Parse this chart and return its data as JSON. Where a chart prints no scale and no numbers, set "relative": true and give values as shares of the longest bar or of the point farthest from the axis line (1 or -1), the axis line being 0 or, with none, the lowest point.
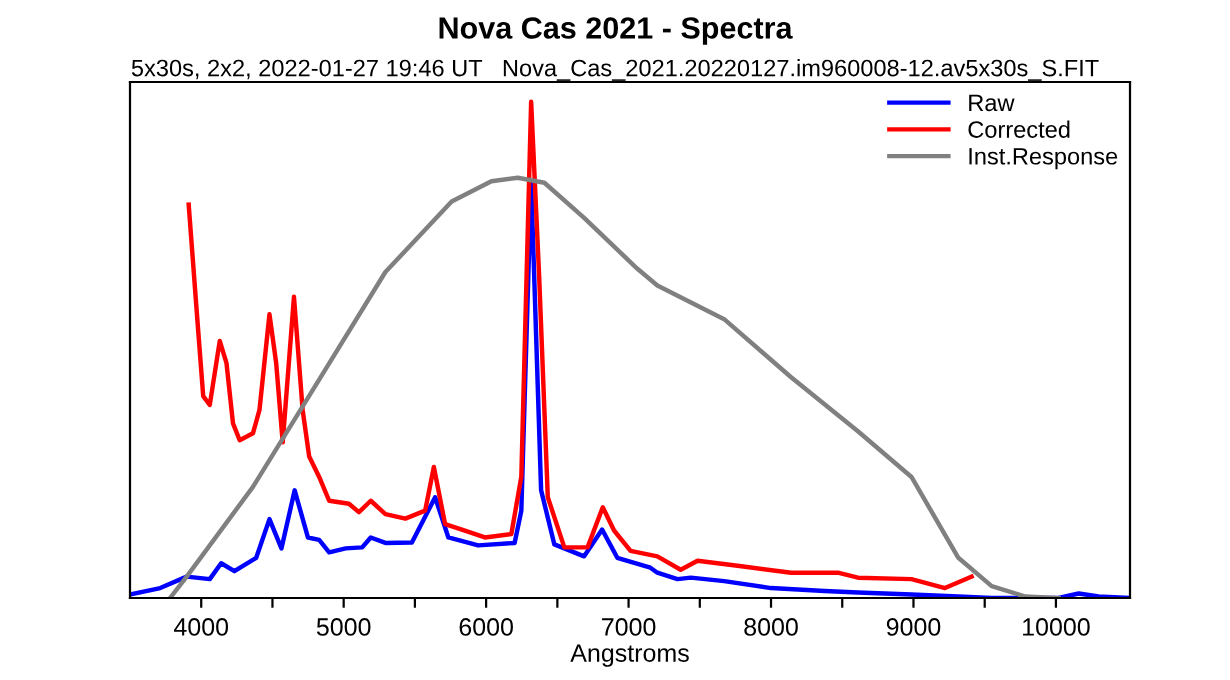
{
  "chart_data": {
    "type": "line",
    "title": "Nova Cas 2021 - Spectra",
    "subtitle": "5x30s, 2x2, 2022-01-27 19:46 UT   Nova_Cas_2021.20220127.im960008-12.av5x30s_S.FIT",
    "xlabel": "Angstroms",
    "relative": true,
    "xlim": [
      3500,
      10520
    ],
    "xticks": [
      4000,
      {
        "value": 4500,
        "label": null
      },
      5000,
      {
        "value": 5500,
        "label": null
      },
      6000,
      {
        "value": 6500,
        "label": null
      },
      7000,
      {
        "value": 7500,
        "label": null
      },
      8000,
      {
        "value": 8500,
        "label": null
      },
      9000,
      {
        "value": 9500,
        "label": null
      },
      10000
    ],
    "legend": "top right",
    "grid": false,
    "line_style": "solid",
    "marker": "none",
    "series": [
      {
        "name": "Raw",
        "color": "#0000ff",
        "x": [
          3500,
          3712,
          3898,
          4060,
          4140,
          4233,
          4386,
          4479,
          4563,
          4656,
          4749,
          4828,
          4898,
          5014,
          5130,
          5190,
          5293,
          5479,
          5642,
          5735,
          5944,
          6200,
          6247,
          6316,
          6386,
          6479,
          6688,
          6814,
          6921,
          7153,
          7202,
          7343,
          7437,
          7671,
          8000,
          8376,
          8610,
          8986,
          9315,
          9549,
          10019,
          10160,
          10300,
          10512
        ],
        "values": [
          0.007,
          0.02,
          0.043,
          0.038,
          0.07,
          0.054,
          0.081,
          0.159,
          0.1,
          0.217,
          0.122,
          0.117,
          0.092,
          0.1,
          0.102,
          0.122,
          0.111,
          0.112,
          0.203,
          0.122,
          0.106,
          0.111,
          0.176,
          0.84,
          0.217,
          0.108,
          0.084,
          0.138,
          0.081,
          0.061,
          0.051,
          0.038,
          0.041,
          0.034,
          0.02,
          0.014,
          0.011,
          0.007,
          0.003,
          0,
          0,
          0.009,
          0.003,
          0
        ]
      },
      {
        "name": "Corrected",
        "color": "#ff0000",
        "x": [
          3912,
          3967,
          4014,
          4060,
          4130,
          4177,
          4223,
          4270,
          4363,
          4409,
          4479,
          4526,
          4572,
          4651,
          4712,
          4758,
          4828,
          4898,
          5037,
          5107,
          5190,
          5293,
          5433,
          5572,
          5633,
          5712,
          5851,
          5991,
          6177,
          6247,
          6316,
          6372,
          6433,
          6549,
          6712,
          6819,
          6898,
          7014,
          7202,
          7366,
          7484,
          7765,
          8141,
          8469,
          8610,
          8986,
          9221,
          9408
        ],
        "values": [
          0.793,
          0.583,
          0.407,
          0.389,
          0.518,
          0.474,
          0.352,
          0.318,
          0.332,
          0.379,
          0.572,
          0.474,
          0.314,
          0.607,
          0.379,
          0.285,
          0.244,
          0.196,
          0.19,
          0.173,
          0.196,
          0.169,
          0.16,
          0.176,
          0.264,
          0.149,
          0.136,
          0.122,
          0.129,
          0.244,
          1,
          0.65,
          0.203,
          0.102,
          0.102,
          0.183,
          0.136,
          0.095,
          0.084,
          0.057,
          0.075,
          0.065,
          0.051,
          0.051,
          0.041,
          0.038,
          0.02,
          0.043
        ]
      },
      {
        "name": "Inst.Response",
        "color": "#808080",
        "x": [
          3781,
          3898,
          4363,
          4828,
          5293,
          5758,
          6037,
          6223,
          6409,
          6688,
          7060,
          7202,
          7671,
          8141,
          8610,
          8986,
          9315,
          9549,
          9784,
          10019
        ],
        "values": [
          0,
          0.043,
          0.224,
          0.44,
          0.657,
          0.799,
          0.84,
          0.847,
          0.837,
          0.766,
          0.664,
          0.63,
          0.562,
          0.445,
          0.336,
          0.244,
          0.081,
          0.024,
          0.003,
          0
        ]
      }
    ]
  }
}
